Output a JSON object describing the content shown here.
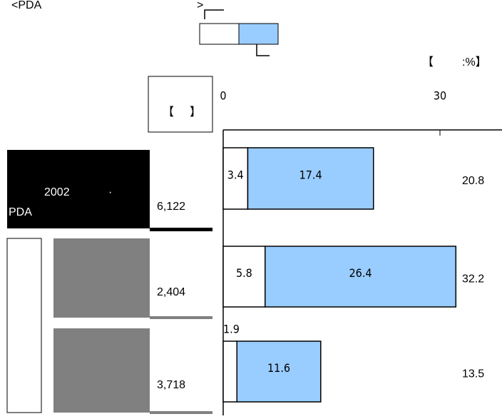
{
  "chart_data": {
    "type": "bar",
    "title": "<PDA",
    "title_end": ">",
    "unit_open": "【",
    "unit_close": ":%】",
    "header_open": "【",
    "header_close": "】",
    "row_label": [
      "2002",
      "·",
      "PDA"
    ],
    "categories": [
      "2002 · PDA",
      null,
      null
    ],
    "counts": [
      {
        "value": 6122,
        "label": "6,122"
      },
      {
        "value": 2404,
        "label": "2,404"
      },
      {
        "value": 3718,
        "label": "3,718"
      }
    ],
    "series": [
      {
        "color": "#ffffff",
        "values": [
          3.4,
          5.8,
          1.9
        ]
      },
      {
        "color": "#99ccff",
        "values": [
          17.4,
          26.4,
          11.6
        ]
      }
    ],
    "totals": [
      20.8,
      32.2,
      13.5
    ],
    "xlim": [
      0,
      30
    ],
    "xticks": [
      0,
      30
    ]
  }
}
